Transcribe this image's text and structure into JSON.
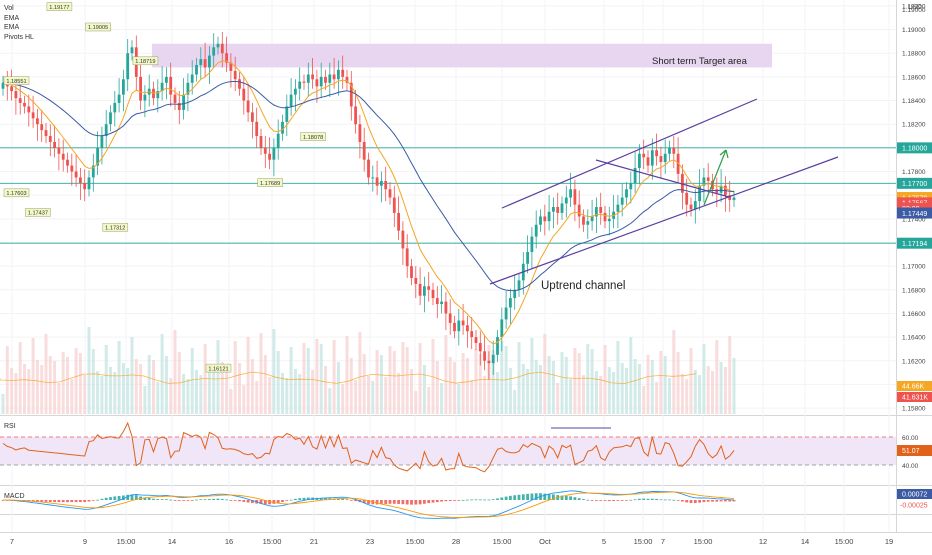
{
  "legend": {
    "items": [
      "Vol",
      "EMA",
      "EMA",
      "Pivots HL"
    ]
  },
  "currency": "USD",
  "colors": {
    "up": "#26a69a",
    "down": "#ef5350",
    "ema_fast": "#f5a623",
    "ema_slow": "#3b5ba5",
    "channel": "#5b3fa0",
    "hline": "#26a69a",
    "target": "#e8d5f0",
    "rsi": "#e0621b",
    "rsi_band": "#f1e6f7",
    "macd": "#2196f3",
    "signal": "#ff9800",
    "axis": "#444444",
    "arrow": "#2e9e44",
    "pivot_bg": "#f3f8c9"
  },
  "annotations": {
    "target": "Short term Target area",
    "channel": "Uptrend channel"
  },
  "rsi_pane": {
    "label": "RSI",
    "ticks": [
      "60.00",
      "40.00"
    ],
    "value": "51.07"
  },
  "macd_pane": {
    "label": "MACD",
    "values": [
      "0.00072",
      "-0.00025"
    ]
  },
  "price_labels": {
    "top": "1.19000",
    "h1": "1.18000",
    "h2": "1.17700",
    "current": "1.17579",
    "ema_fast": "1.17567",
    "time": "02:00",
    "ema_slow": "1.17449",
    "h3": "1.17194",
    "vol1": "44.66K",
    "vol2": "41.631K"
  },
  "chart_data": {
    "type": "candlestick",
    "ylim": [
      1.1575,
      1.1925
    ],
    "y_ticks": [
      "1.19200",
      "1.19000",
      "1.18800",
      "1.18600",
      "1.18400",
      "1.18200",
      "1.18000",
      "1.17800",
      "1.17600",
      "1.17400",
      "1.17200",
      "1.17000",
      "1.16800",
      "1.16600",
      "1.16400",
      "1.16200",
      "1.16000",
      "1.15800"
    ],
    "x_ticks": [
      "7",
      "9",
      "15:00",
      "14",
      "16",
      "15:00",
      "21",
      "23",
      "15:00",
      "28",
      "15:00",
      "Oct",
      "5",
      "15:00",
      "7",
      "15:00",
      "12",
      "14",
      "15:00",
      "19"
    ],
    "horizontal_levels": [
      1.18,
      1.177,
      1.17194
    ],
    "target_zone": [
      1.1868,
      1.1888
    ],
    "pivots": [
      {
        "label": "1.18551",
        "x": 0,
        "y": 1.18551
      },
      {
        "label": "1.19177",
        "x": 13,
        "y": 1.19177
      },
      {
        "label": "1.19005",
        "x": 22,
        "y": 1.19005
      },
      {
        "label": "1.18719",
        "x": 33,
        "y": 1.18719
      },
      {
        "label": "1.17603",
        "x": 0,
        "y": 1.17603
      },
      {
        "label": "1.17437",
        "x": 8,
        "y": 1.17437
      },
      {
        "label": "1.17312",
        "x": 26,
        "y": 1.17312
      },
      {
        "label": "1.17689",
        "x": 62,
        "y": 1.17689
      },
      {
        "label": "1.16121",
        "x": 50,
        "y": 1.16121
      },
      {
        "label": "1.18078",
        "x": 72,
        "y": 1.18078
      }
    ],
    "closes": [
      1.1855,
      1.1852,
      1.1848,
      1.1842,
      1.1838,
      1.1835,
      1.183,
      1.1825,
      1.182,
      1.1815,
      1.181,
      1.1805,
      1.18,
      1.1795,
      1.179,
      1.1785,
      1.178,
      1.1775,
      1.177,
      1.1765,
      1.1775,
      1.1785,
      1.18,
      1.181,
      1.182,
      1.183,
      1.1838,
      1.1845,
      1.1858,
      1.188,
      1.1885,
      1.186,
      1.184,
      1.1845,
      1.185,
      1.1842,
      1.1848,
      1.1855,
      1.186,
      1.1845,
      1.1838,
      1.1832,
      1.1845,
      1.1855,
      1.1862,
      1.187,
      1.1875,
      1.1868,
      1.1878,
      1.1885,
      1.1888,
      1.188,
      1.1872,
      1.1865,
      1.1858,
      1.185,
      1.184,
      1.183,
      1.1822,
      1.181,
      1.18,
      1.1795,
      1.179,
      1.18,
      1.1812,
      1.1822,
      1.1835,
      1.1845,
      1.185,
      1.1856,
      1.1855,
      1.1862,
      1.1858,
      1.1852,
      1.186,
      1.1855,
      1.1862,
      1.1858,
      1.1866,
      1.186,
      1.1855,
      1.1835,
      1.182,
      1.1805,
      1.179,
      1.1775,
      1.1775,
      1.1768,
      1.1772,
      1.1765,
      1.1758,
      1.1745,
      1.173,
      1.1715,
      1.17,
      1.169,
      1.1685,
      1.1675,
      1.1683,
      1.168,
      1.1673,
      1.1668,
      1.167,
      1.166,
      1.1652,
      1.1645,
      1.1654,
      1.165,
      1.1645,
      1.164,
      1.1635,
      1.1628,
      1.162,
      1.1618,
      1.1625,
      1.164,
      1.1655,
      1.1665,
      1.1673,
      1.168,
      1.1688,
      1.1702,
      1.1712,
      1.1725,
      1.1735,
      1.1742,
      1.1738,
      1.1746,
      1.175,
      1.1745,
      1.1753,
      1.1758,
      1.1765,
      1.1752,
      1.1742,
      1.1735,
      1.1738,
      1.1742,
      1.175,
      1.1745,
      1.1738,
      1.174,
      1.1746,
      1.1752,
      1.1758,
      1.1765,
      1.177,
      1.1783,
      1.1795,
      1.1792,
      1.1785,
      1.1798,
      1.1793,
      1.1788,
      1.1795,
      1.18,
      1.1795,
      1.1778,
      1.1762,
      1.1752,
      1.1748,
      1.1755,
      1.1768,
      1.1775,
      1.1772,
      1.1765,
      1.1762,
      1.1768,
      1.176,
      1.1756,
      1.1758
    ]
  }
}
